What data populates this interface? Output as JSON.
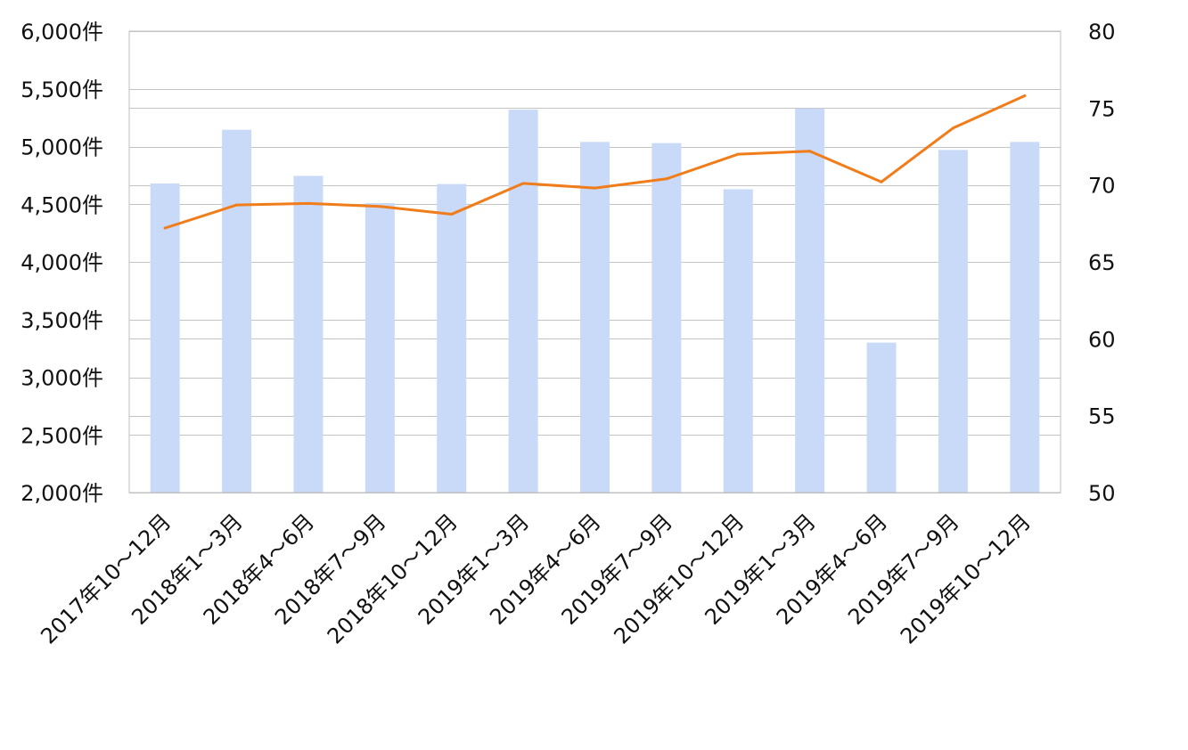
{
  "chart_data": {
    "type": "bar+line",
    "categories": [
      "2017年10～12月",
      "2018年1～3月",
      "2018年4～6月",
      "2018年7～9月",
      "2018年10～12月",
      "2019年1～3月",
      "2019年4～6月",
      "2019年7～9月",
      "2019年10～12月",
      "2019年1～3月",
      "2019年4～6月",
      "2019年7～9月",
      "2019年10～12月"
    ],
    "series": [
      {
        "type": "bar",
        "axis": "left",
        "color": "#c9daf8",
        "values": [
          4680,
          5145,
          4745,
          4510,
          4675,
          5320,
          5040,
          5030,
          4630,
          5330,
          3300,
          4970,
          5040
        ]
      },
      {
        "type": "line",
        "axis": "right",
        "color": "#f07c1a",
        "values": [
          67.2,
          68.7,
          68.8,
          68.6,
          68.1,
          70.1,
          69.8,
          70.4,
          72.0,
          72.2,
          70.2,
          73.7,
          75.8
        ]
      }
    ],
    "y_left": {
      "ylim": [
        2000,
        6000
      ],
      "ticks": [
        2000,
        2500,
        3000,
        3500,
        4000,
        4500,
        5000,
        5500,
        6000
      ],
      "tick_labels": [
        "2,000件",
        "2,500件",
        "3,000件",
        "3,500件",
        "4,000件",
        "4,500件",
        "5,000件",
        "5,500件",
        "6,000件"
      ]
    },
    "y_right": {
      "ylim": [
        50,
        80
      ],
      "ticks": [
        50,
        55,
        60,
        65,
        70,
        75,
        80
      ],
      "tick_labels": [
        "50",
        "55",
        "60",
        "65",
        "70",
        "75",
        "80"
      ]
    },
    "grid": true,
    "legend": "none"
  }
}
